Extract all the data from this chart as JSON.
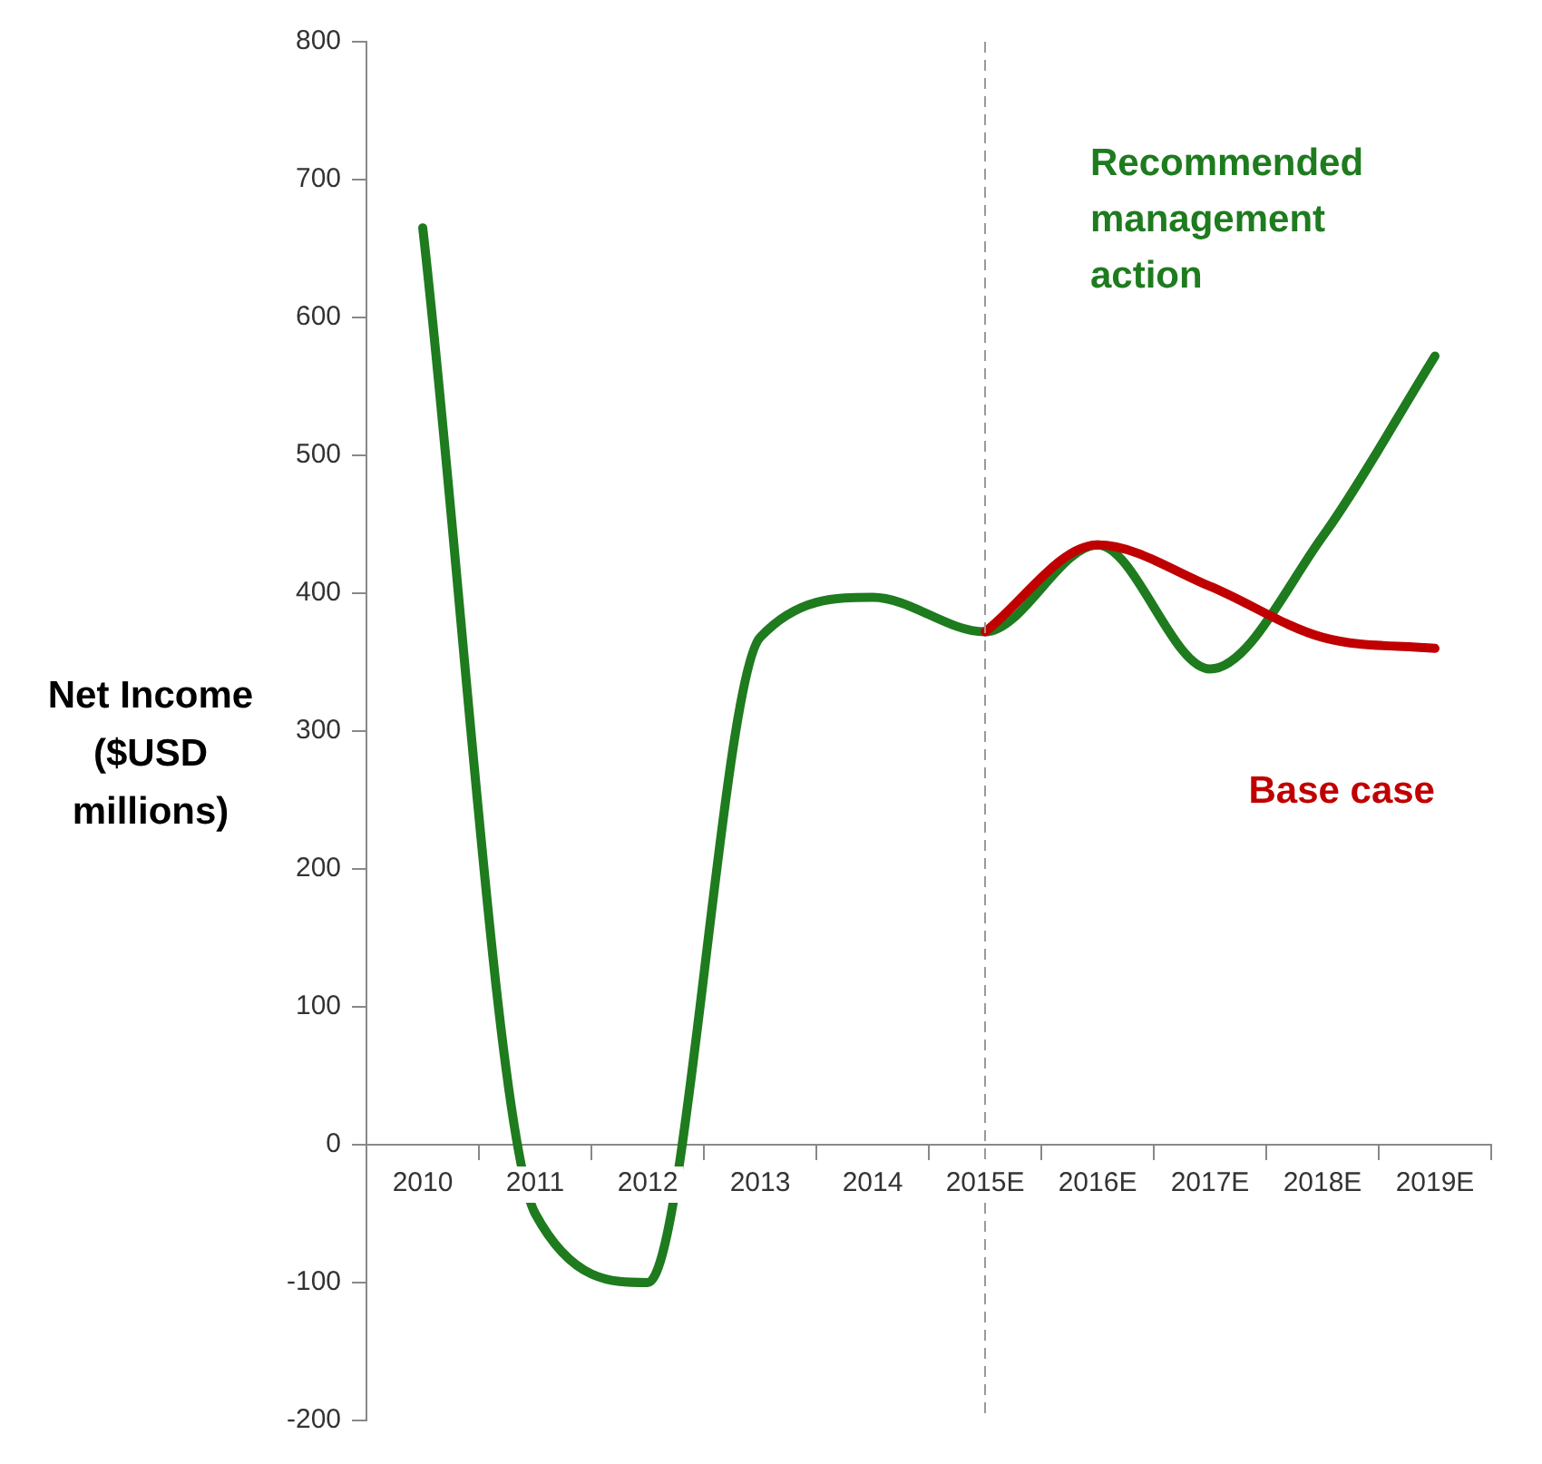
{
  "chart_data": {
    "type": "line",
    "ylabel": "Net Income ($USD millions)",
    "categories": [
      "2010",
      "2011",
      "2012",
      "2013",
      "2014",
      "2015E",
      "2016E",
      "2017E",
      "2018E",
      "2019E"
    ],
    "series": [
      {
        "name": "Base case",
        "color": "#c00000",
        "values": [
          null,
          null,
          null,
          null,
          null,
          372,
          435,
          405,
          368,
          360
        ]
      },
      {
        "name": "Recommended management action",
        "color": "#1e7b1e",
        "values": [
          665,
          -50,
          -100,
          368,
          397,
          372,
          435,
          345,
          441,
          572
        ]
      }
    ],
    "ylim": [
      -200,
      800
    ],
    "yticks": [
      -200,
      -100,
      0,
      100,
      200,
      300,
      400,
      500,
      600,
      700,
      800
    ],
    "grid": false,
    "legend": false,
    "marker": "none",
    "line_style": "solid",
    "ref_lines": [
      {
        "axis": "x",
        "value": "2015E",
        "color": "#999999",
        "line_style": "dashed"
      }
    ]
  }
}
